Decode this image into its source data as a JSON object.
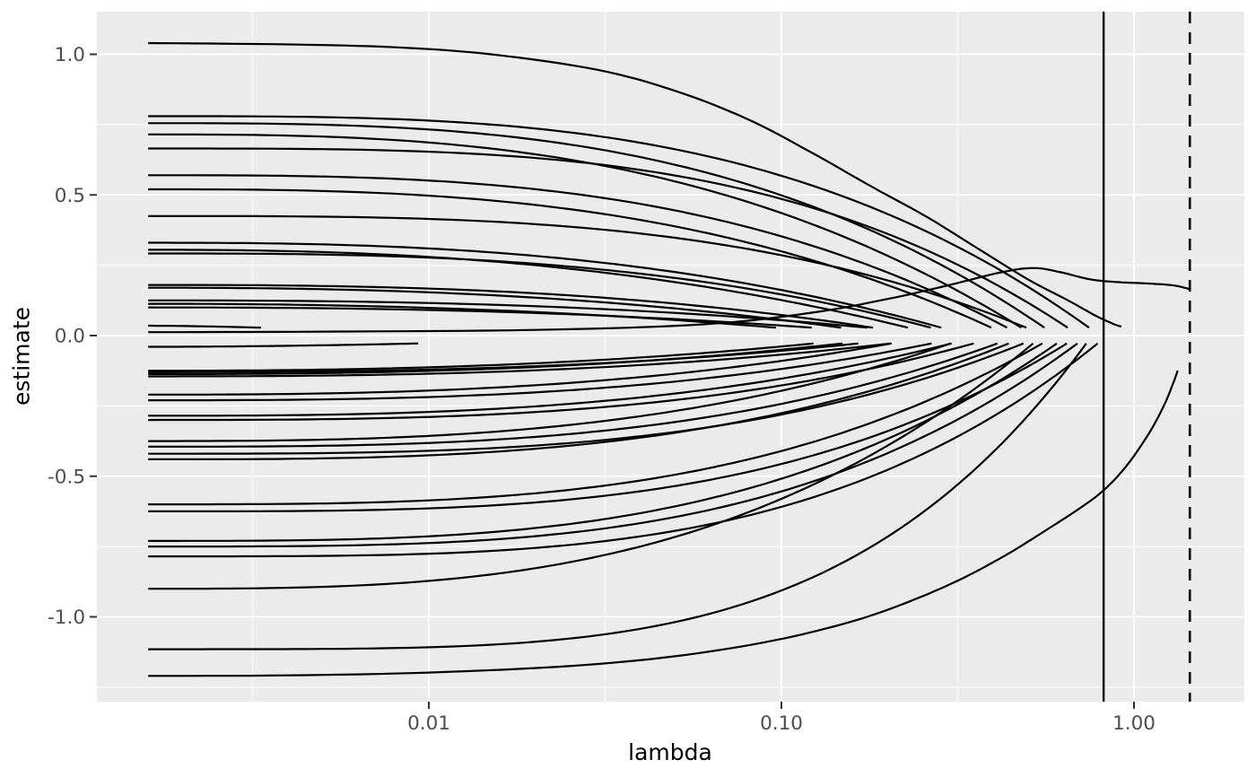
{
  "chart_data": {
    "type": "line",
    "title": "",
    "xlabel": "lambda",
    "ylabel": "estimate",
    "x_scale": "log10",
    "x_ticks": [
      0.01,
      0.1,
      1.0
    ],
    "x_tick_labels": [
      "0.01",
      "0.10",
      "1.00"
    ],
    "x_minor_ticks": [
      0.00316,
      0.0316,
      0.316
    ],
    "y_ticks": [
      1.0,
      0.5,
      0.0,
      -0.5,
      -1.0
    ],
    "y_tick_labels": [
      "1.0",
      "0.5",
      "0.0",
      "-0.5",
      "-1.0"
    ],
    "y_minor_ticks": [
      0.75,
      0.25,
      -0.25,
      -0.75,
      -1.25
    ],
    "x_range_log10": [
      -2.941,
      0.313
    ],
    "y_range": [
      -1.301,
      1.151
    ],
    "lambda_min": 0.0016,
    "zero_cutoff": 0.028,
    "vline_solid_lambda": 0.82,
    "vline_dashed_lambda": 1.44,
    "legend": "none",
    "grid": "on",
    "paths": [
      {
        "start": 0.78,
        "end_lambda": 0.8,
        "k": 3.2
      },
      {
        "start": 0.755,
        "end_lambda": 0.6,
        "k": 3.0
      },
      {
        "start": 0.715,
        "end_lambda": 0.52,
        "k": 2.8
      },
      {
        "start": 0.665,
        "end_lambda": 0.7,
        "k": 3.4
      },
      {
        "start": 0.57,
        "end_lambda": 0.48,
        "k": 3.0
      },
      {
        "start": 0.52,
        "end_lambda": 0.44,
        "k": 2.8
      },
      {
        "start": 0.425,
        "end_lambda": 0.56,
        "k": 3.2
      },
      {
        "start": 0.33,
        "end_lambda": 0.34,
        "k": 2.6
      },
      {
        "start": 0.305,
        "end_lambda": 0.28,
        "k": 2.4
      },
      {
        "start": 0.292,
        "end_lambda": 0.32,
        "k": 2.8
      },
      {
        "start": 0.18,
        "end_lambda": 0.25,
        "k": 2.6
      },
      {
        "start": 0.17,
        "end_lambda": 0.21,
        "k": 2.4
      },
      {
        "start": 0.125,
        "end_lambda": 0.29,
        "k": 2.5
      },
      {
        "start": 0.113,
        "end_lambda": 0.17,
        "k": 2.2
      },
      {
        "start": 0.1,
        "end_lambda": 0.23,
        "k": 2.4
      },
      {
        "start": 0.035,
        "end_lambda": 0.012,
        "k": 1.6
      },
      {
        "start": 0.02,
        "end_lambda": 0.006,
        "k": 1.5
      },
      {
        "start": 0.008,
        "end_lambda": 0.0045,
        "k": 1.4
      },
      {
        "start": -0.015,
        "end_lambda": 0.0045,
        "k": 1.5
      },
      {
        "start": -0.025,
        "end_lambda": 0.016,
        "k": 1.6
      },
      {
        "start": -0.04,
        "end_lambda": 0.05,
        "k": 1.8
      },
      {
        "start": -0.125,
        "end_lambda": 0.2,
        "k": 2.4
      },
      {
        "start": -0.13,
        "end_lambda": 0.26,
        "k": 2.6
      },
      {
        "start": -0.137,
        "end_lambda": 0.23,
        "k": 2.5
      },
      {
        "start": -0.145,
        "end_lambda": 0.31,
        "k": 2.6
      },
      {
        "start": -0.21,
        "end_lambda": 0.27,
        "k": 2.6
      },
      {
        "start": -0.23,
        "end_lambda": 0.34,
        "k": 2.8
      },
      {
        "start": -0.285,
        "end_lambda": 0.37,
        "k": 2.8
      },
      {
        "start": -0.3,
        "end_lambda": 0.42,
        "k": 3.0
      },
      {
        "start": -0.375,
        "end_lambda": 0.35,
        "k": 2.8
      },
      {
        "start": -0.395,
        "end_lambda": 0.47,
        "k": 3.0
      },
      {
        "start": -0.42,
        "end_lambda": 0.55,
        "k": 3.2
      },
      {
        "start": -0.44,
        "end_lambda": 0.5,
        "k": 3.0
      },
      {
        "start": -0.6,
        "end_lambda": 0.6,
        "k": 3.2
      },
      {
        "start": -0.625,
        "end_lambda": 0.7,
        "k": 3.4
      },
      {
        "start": -0.73,
        "end_lambda": 0.65,
        "k": 3.2
      },
      {
        "start": -0.75,
        "end_lambda": 0.74,
        "k": 3.4
      },
      {
        "start": -0.785,
        "end_lambda": 0.84,
        "k": 3.6
      },
      {
        "start": -0.9,
        "end_lambda": 0.55,
        "k": 3.0
      },
      {
        "start": -1.115,
        "end_lambda": 0.76,
        "k": 4.2
      }
    ],
    "special_paths": [
      {
        "name": "largest-positive-path",
        "points": [
          [
            0.0016,
            1.04
          ],
          [
            0.004,
            1.035
          ],
          [
            0.008,
            1.025
          ],
          [
            0.015,
            1.0
          ],
          [
            0.03,
            0.945
          ],
          [
            0.05,
            0.87
          ],
          [
            0.08,
            0.77
          ],
          [
            0.12,
            0.655
          ],
          [
            0.18,
            0.53
          ],
          [
            0.26,
            0.42
          ],
          [
            0.36,
            0.31
          ],
          [
            0.5,
            0.2
          ],
          [
            0.65,
            0.125
          ],
          [
            0.78,
            0.07
          ],
          [
            0.88,
            0.04
          ],
          [
            0.92,
            0.032
          ]
        ]
      },
      {
        "name": "hump-path-to-dashed-line",
        "points": [
          [
            0.0016,
            0.012
          ],
          [
            0.005,
            0.014
          ],
          [
            0.02,
            0.02
          ],
          [
            0.06,
            0.04
          ],
          [
            0.12,
            0.08
          ],
          [
            0.2,
            0.13
          ],
          [
            0.3,
            0.18
          ],
          [
            0.42,
            0.225
          ],
          [
            0.52,
            0.24
          ],
          [
            0.62,
            0.225
          ],
          [
            0.75,
            0.2
          ],
          [
            0.9,
            0.19
          ],
          [
            1.1,
            0.185
          ],
          [
            1.3,
            0.178
          ],
          [
            1.44,
            0.165
          ]
        ]
      },
      {
        "name": "lowest-negative-path",
        "points": [
          [
            0.0016,
            -1.21
          ],
          [
            0.004,
            -1.208
          ],
          [
            0.01,
            -1.198
          ],
          [
            0.025,
            -1.175
          ],
          [
            0.05,
            -1.14
          ],
          [
            0.09,
            -1.09
          ],
          [
            0.14,
            -1.035
          ],
          [
            0.2,
            -0.975
          ],
          [
            0.3,
            -0.885
          ],
          [
            0.42,
            -0.79
          ],
          [
            0.55,
            -0.7
          ],
          [
            0.7,
            -0.615
          ],
          [
            0.82,
            -0.55
          ],
          [
            0.95,
            -0.465
          ],
          [
            1.1,
            -0.35
          ],
          [
            1.22,
            -0.245
          ],
          [
            1.3,
            -0.16
          ],
          [
            1.33,
            -0.125
          ]
        ]
      }
    ],
    "style": {
      "panel_bg": "#EBEBEB",
      "outer_bg": "#FFFFFF",
      "grid_color": "#FFFFFF",
      "line_color": "#000000",
      "tick_mark_color": "#333333",
      "tick_label_color": "#4D4D4D",
      "axis_title_color": "#000000"
    }
  }
}
